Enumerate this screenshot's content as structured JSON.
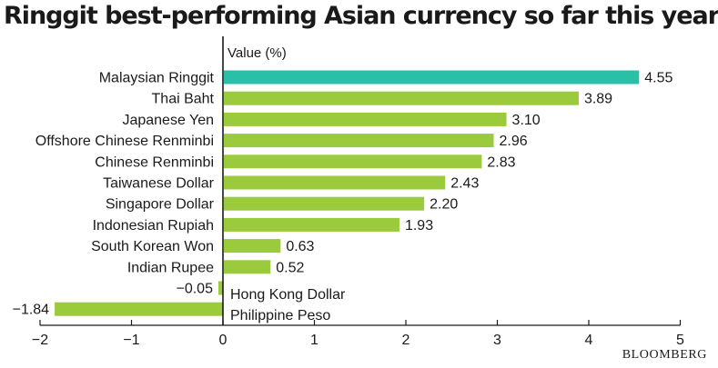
{
  "chart_data": {
    "type": "bar",
    "orientation": "horizontal",
    "title": "Ringgit best-performing Asian currency so far this year",
    "xlabel": "Value (%)",
    "ylabel": "",
    "xlim": [
      -2,
      5
    ],
    "x_ticks": [
      -2,
      -1,
      0,
      1,
      2,
      3,
      4,
      5
    ],
    "x_tick_labels": [
      "−2",
      "−1",
      "0",
      "1",
      "2",
      "3",
      "4",
      "5"
    ],
    "grid": false,
    "legend": "none",
    "categories": [
      "Malaysian Ringgit",
      "Thai Baht",
      "Japanese Yen",
      "Offshore Chinese Renminbi",
      "Chinese Renminbi",
      "Taiwanese Dollar",
      "Singapore Dollar",
      "Indonesian Rupiah",
      "South Korean Won",
      "Indian Rupee",
      "Hong Kong Dollar",
      "Philippine Peso"
    ],
    "values": [
      4.55,
      3.89,
      3.1,
      2.96,
      2.83,
      2.43,
      2.2,
      1.93,
      0.63,
      0.52,
      -0.05,
      -1.84
    ],
    "value_labels": [
      "4.55",
      "3.89",
      "3.10",
      "2.96",
      "2.83",
      "2.43",
      "2.20",
      "1.93",
      "0.63",
      "0.52",
      "−0.05",
      "−1.84"
    ],
    "highlight_category": "Malaysian Ringgit",
    "colors": {
      "highlight": "#2bbfa8",
      "bar": "#9bcb3c",
      "axis": "#1a1a1a",
      "text": "#1a1a1a"
    }
  },
  "source": "BLOOMBERG"
}
